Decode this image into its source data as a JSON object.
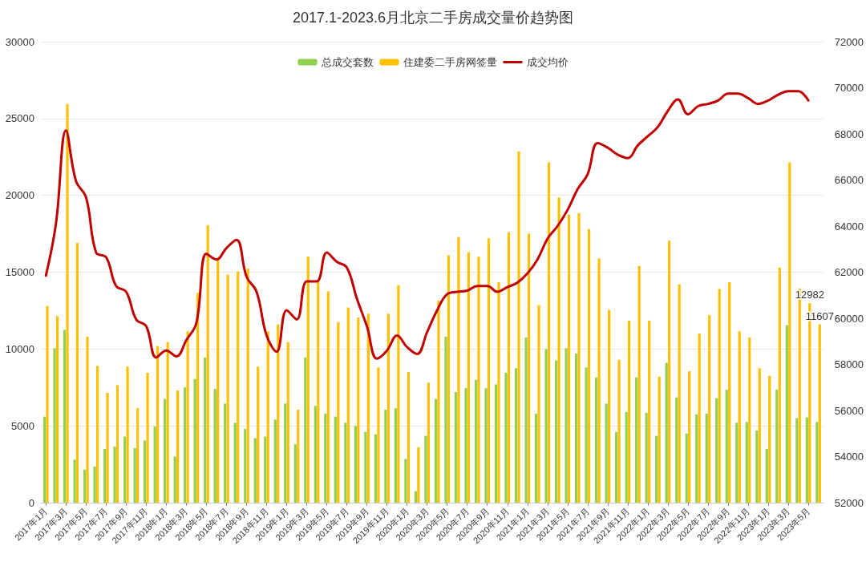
{
  "chart_data": {
    "type": "bar",
    "title": "2017.1-2023.6月北京二手房成交量价趋势图",
    "categories": [
      "2017年1月",
      null,
      "2017年3月",
      null,
      "2017年5月",
      null,
      "2017年7月",
      null,
      "2017年9月",
      null,
      "2017年11月",
      null,
      "2018年1月",
      null,
      "2018年3月",
      null,
      "2018年5月",
      null,
      "2018年7月",
      null,
      "2018年9月",
      null,
      "2018年11月",
      null,
      "2019年1月",
      null,
      "2019年3月",
      null,
      "2019年5月",
      null,
      "2019年7月",
      null,
      "2019年9月",
      null,
      "2019年11月",
      null,
      "2020年1月",
      null,
      "2020年3月",
      null,
      "2020年5月",
      null,
      "2020年7月",
      null,
      "2020年9月",
      null,
      "2020年11月",
      null,
      "2021年1月",
      null,
      "2021年3月",
      null,
      "2021年5月",
      null,
      "2021年7月",
      null,
      "2021年9月",
      null,
      "2021年11月",
      null,
      "2022年1月",
      null,
      "2022年3月",
      null,
      "2022年5月",
      null,
      "2022年7月",
      null,
      "2022年9月",
      null,
      "2022年11月",
      null,
      "2023年1月",
      null,
      "2023年3月",
      null,
      "2023年5月",
      null
    ],
    "series": [
      {
        "name": "总成交套数",
        "color": "#92d050",
        "values": [
          5600,
          10050,
          11250,
          2800,
          2150,
          2350,
          3500,
          3650,
          4300,
          3550,
          4050,
          4950,
          6750,
          3000,
          7500,
          8050,
          9450,
          7400,
          6450,
          5200,
          4800,
          4200,
          4300,
          5400,
          6450,
          3800,
          9450,
          6300,
          5800,
          5600,
          5200,
          5000,
          4600,
          4450,
          6050,
          6150,
          2850,
          750,
          4350,
          6750,
          10800,
          7200,
          7450,
          8000,
          7450,
          7700,
          8450,
          8750,
          10750,
          5800,
          10000,
          9250,
          10050,
          9700,
          8800,
          8150,
          6450,
          4600,
          5900,
          8150,
          5850,
          4350,
          9100,
          6850,
          4500,
          5750,
          5800,
          6800,
          7350,
          5200,
          5250,
          4700,
          3500,
          7350,
          11550,
          5500,
          5550,
          5250
        ]
      },
      {
        "name": "住建委二手房网签量",
        "color": "#ffc000",
        "values": [
          12800,
          12150,
          25950,
          16900,
          10800,
          8900,
          7150,
          7650,
          8850,
          6150,
          8450,
          10200,
          10450,
          7300,
          11150,
          13650,
          18050,
          15800,
          14850,
          15050,
          15250,
          8850,
          11150,
          11600,
          10450,
          6050,
          16000,
          14400,
          13750,
          11750,
          12700,
          12050,
          12300,
          8800,
          12300,
          14150,
          8500,
          3600,
          7800,
          13150,
          16100,
          17300,
          16300,
          16000,
          17200,
          14350,
          17600,
          22850,
          17500,
          12850,
          22150,
          19850,
          18750,
          18850,
          17800,
          15900,
          12550,
          9300,
          11850,
          15400,
          11850,
          8200,
          17050,
          14200,
          8550,
          11000,
          12200,
          13900,
          14350,
          11150,
          10750,
          8750,
          8250,
          15300,
          22150,
          13950,
          12982,
          11607
        ],
        "value_labels": [
          null,
          null,
          null,
          null,
          null,
          null,
          null,
          null,
          null,
          null,
          null,
          null,
          null,
          null,
          null,
          null,
          null,
          null,
          null,
          null,
          null,
          null,
          null,
          null,
          null,
          null,
          null,
          null,
          null,
          null,
          null,
          null,
          null,
          null,
          null,
          null,
          null,
          null,
          null,
          null,
          null,
          null,
          null,
          null,
          null,
          null,
          null,
          null,
          null,
          null,
          null,
          null,
          null,
          null,
          null,
          null,
          null,
          null,
          null,
          null,
          null,
          null,
          null,
          null,
          null,
          null,
          null,
          null,
          null,
          null,
          null,
          null,
          null,
          null,
          null,
          null,
          "12982",
          "11607"
        ]
      },
      {
        "name": "成交均价",
        "type": "line",
        "axis": "y2",
        "color": "#c00000",
        "values": [
          61850,
          64100,
          68150,
          65950,
          65250,
          62850,
          62650,
          61400,
          61150,
          59950,
          59650,
          58300,
          58600,
          58350,
          59050,
          59800,
          62800,
          62550,
          63050,
          63400,
          61800,
          61150,
          59250,
          58550,
          60350,
          59950,
          61600,
          61600,
          62850,
          62450,
          62200,
          60850,
          59650,
          58250,
          58600,
          59250,
          58750,
          58450,
          59400,
          60350,
          61050,
          61150,
          61200,
          61400,
          61400,
          61150,
          61350,
          61550,
          61950,
          62550,
          63450,
          64000,
          64700,
          65600,
          66250,
          67600,
          67400,
          67100,
          66950,
          67500,
          67900,
          68300,
          69000,
          69500,
          68850,
          69200,
          69300,
          69450,
          69750,
          69750,
          69550,
          69300,
          69450,
          69700,
          69850,
          69850,
          69450,
          null
        ]
      }
    ],
    "ylim": [
      0,
      30000
    ],
    "yticks": [
      0,
      5000,
      10000,
      15000,
      20000,
      25000,
      30000
    ],
    "y2lim": [
      52000,
      72000
    ],
    "y2ticks": [
      52000,
      54000,
      56000,
      58000,
      60000,
      62000,
      64000,
      66000,
      68000,
      70000,
      72000
    ],
    "grid": "y",
    "legend": "top"
  }
}
